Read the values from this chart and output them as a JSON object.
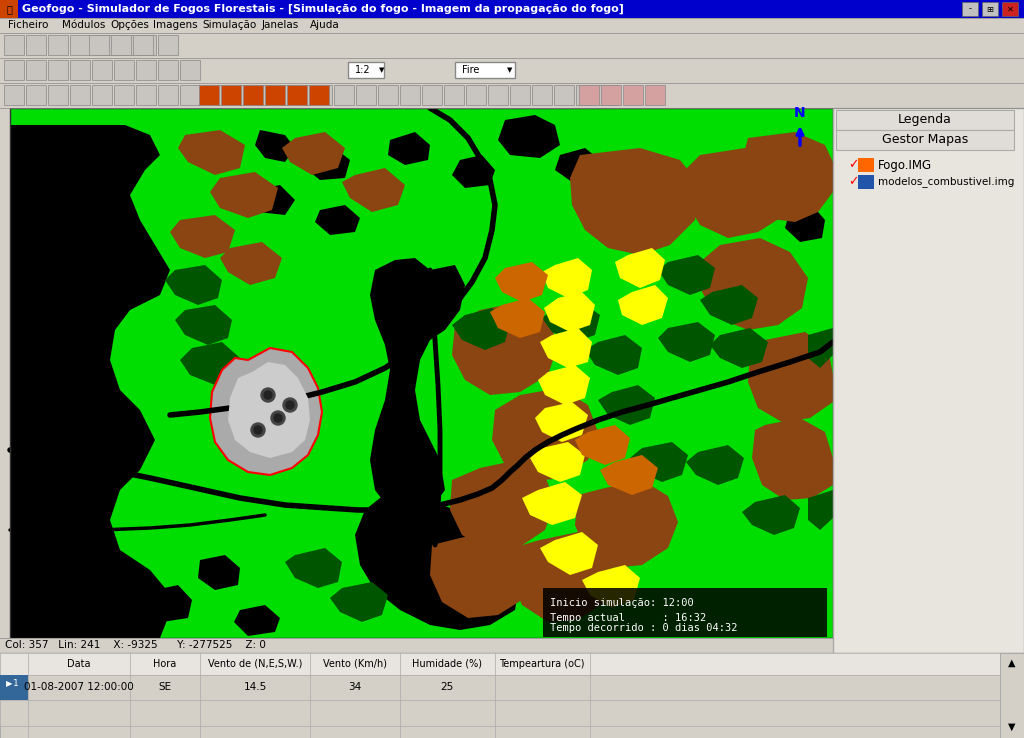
{
  "title_bar": "Geofogo - Simulador de Fogos Florestais - [Simulação do fogo - Imagem da propagação do fogo]",
  "title_bar_bg": "#0000cc",
  "title_bar_fg": "#ffffff",
  "window_bg": "#d4d0c8",
  "legend_title": "Legenda",
  "gestor_title": "Gestor Mapas",
  "layer1_name": "Fogo.IMG",
  "layer2_name": "modelos_combustivel.img",
  "status_bar_text": "Col: 357   Lin: 241    X: -9325      Y: -277525    Z: 0",
  "sim_text1": "Inicio simulação: 12:00",
  "sim_text2": "Tempo actual      : 16:32",
  "sim_text3": "Tempo decorrido : 0 dias 04:32",
  "table_headers": [
    "Data",
    "Hora",
    "Vento de (N,E,S,W.)",
    "Vento (Km/h)",
    "Humidade (%)",
    "Tempeartura (oC)"
  ],
  "table_row": [
    "01-08-2007 12:00:00",
    "SE",
    "14.5",
    "34",
    "25"
  ],
  "map_green": "#00dd00",
  "map_black": "#000000",
  "map_brown": "#8B4513",
  "map_dark_brown": "#7a3010",
  "map_dark_green": "#005500",
  "map_yellow": "#ffff00",
  "map_orange": "#cc6600",
  "map_gray": "#aaaaaa",
  "map_light_gray": "#cccccc"
}
